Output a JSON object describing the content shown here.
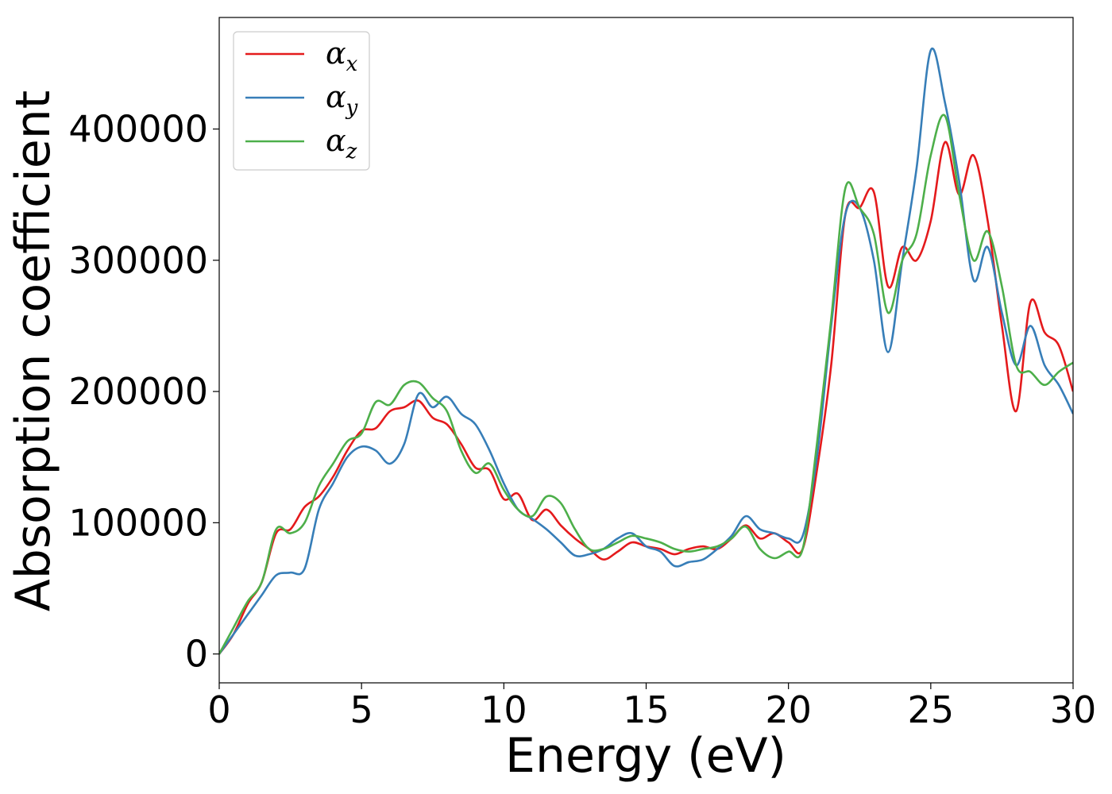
{
  "chart_data": {
    "type": "line",
    "xlabel": "Energy (eV)",
    "ylabel": "Absorption coefficient",
    "xlim": [
      0,
      30
    ],
    "ylim": [
      -22000,
      485000
    ],
    "xticks": [
      0,
      5,
      10,
      15,
      20,
      25,
      30
    ],
    "yticks": [
      0,
      100000,
      200000,
      300000,
      400000
    ],
    "grid": false,
    "legend_position": "upper-left",
    "series": [
      {
        "name": "αx",
        "symbol": "α",
        "subscript": "x",
        "color": "#e41a1c",
        "x": [
          0,
          0.5,
          1,
          1.5,
          2,
          2.5,
          3,
          3.5,
          4,
          4.5,
          5,
          5.5,
          6,
          6.5,
          7,
          7.5,
          8,
          8.5,
          9,
          9.5,
          10,
          10.5,
          11,
          11.5,
          12,
          12.5,
          13,
          13.5,
          14,
          14.5,
          15,
          15.5,
          16,
          16.5,
          17,
          17.5,
          18,
          18.5,
          19,
          19.5,
          20,
          20.5,
          21,
          21.5,
          22,
          22.5,
          23,
          23.5,
          24,
          24.5,
          25,
          25.5,
          26,
          26.5,
          27,
          27.5,
          28,
          28.5,
          29,
          29.5,
          30
        ],
        "y": [
          0,
          15000,
          38000,
          55000,
          92000,
          95000,
          112000,
          120000,
          135000,
          155000,
          170000,
          172000,
          185000,
          188000,
          193000,
          180000,
          175000,
          160000,
          142000,
          140000,
          118000,
          122000,
          102000,
          110000,
          98000,
          88000,
          80000,
          72000,
          78000,
          85000,
          82000,
          80000,
          76000,
          80000,
          82000,
          80000,
          88000,
          98000,
          88000,
          92000,
          85000,
          80000,
          140000,
          220000,
          335000,
          340000,
          352000,
          280000,
          310000,
          300000,
          330000,
          390000,
          350000,
          380000,
          330000,
          250000,
          185000,
          268000,
          245000,
          235000,
          200000
        ]
      },
      {
        "name": "αy",
        "symbol": "α",
        "subscript": "y",
        "color": "#377eb8",
        "x": [
          0,
          0.5,
          1,
          1.5,
          2,
          2.5,
          3,
          3.5,
          4,
          4.5,
          5,
          5.5,
          6,
          6.5,
          7,
          7.5,
          8,
          8.5,
          9,
          9.5,
          10,
          10.5,
          11,
          11.5,
          12,
          12.5,
          13,
          13.5,
          14,
          14.5,
          15,
          15.5,
          16,
          16.5,
          17,
          17.5,
          18,
          18.5,
          19,
          19.5,
          20,
          20.5,
          21,
          21.5,
          22,
          22.5,
          23,
          23.5,
          24,
          24.5,
          25,
          25.5,
          26,
          26.5,
          27,
          27.5,
          28,
          28.5,
          29,
          29.5,
          30
        ],
        "y": [
          0,
          15000,
          30000,
          45000,
          60000,
          62000,
          65000,
          110000,
          130000,
          150000,
          158000,
          155000,
          145000,
          160000,
          198000,
          188000,
          196000,
          183000,
          175000,
          155000,
          130000,
          110000,
          103000,
          95000,
          85000,
          75000,
          76000,
          80000,
          88000,
          92000,
          82000,
          78000,
          67000,
          70000,
          72000,
          80000,
          90000,
          105000,
          95000,
          92000,
          88000,
          90000,
          150000,
          250000,
          335000,
          340000,
          300000,
          230000,
          300000,
          370000,
          460000,
          420000,
          360000,
          285000,
          310000,
          260000,
          220000,
          250000,
          220000,
          205000,
          183000
        ]
      },
      {
        "name": "αz",
        "symbol": "α",
        "subscript": "z",
        "color": "#4daf4a",
        "x": [
          0,
          0.5,
          1,
          1.5,
          2,
          2.5,
          3,
          3.5,
          4,
          4.5,
          5,
          5.5,
          6,
          6.5,
          7,
          7.5,
          8,
          8.5,
          9,
          9.5,
          10,
          10.5,
          11,
          11.5,
          12,
          12.5,
          13,
          13.5,
          14,
          14.5,
          15,
          15.5,
          16,
          16.5,
          17,
          17.5,
          18,
          18.5,
          19,
          19.5,
          20,
          20.5,
          21,
          21.5,
          22,
          22.5,
          23,
          23.5,
          24,
          24.5,
          25,
          25.5,
          26,
          26.5,
          27,
          27.5,
          28,
          28.5,
          29,
          29.5,
          30
        ],
        "y": [
          0,
          20000,
          40000,
          55000,
          95000,
          92000,
          100000,
          128000,
          145000,
          162000,
          168000,
          192000,
          190000,
          205000,
          207000,
          195000,
          185000,
          155000,
          138000,
          145000,
          125000,
          110000,
          105000,
          120000,
          115000,
          95000,
          80000,
          80000,
          85000,
          90000,
          88000,
          85000,
          80000,
          78000,
          80000,
          82000,
          88000,
          97000,
          80000,
          73000,
          78000,
          80000,
          160000,
          255000,
          355000,
          340000,
          320000,
          260000,
          300000,
          320000,
          380000,
          410000,
          350000,
          300000,
          322000,
          280000,
          220000,
          215000,
          205000,
          215000,
          222000
        ]
      }
    ]
  }
}
